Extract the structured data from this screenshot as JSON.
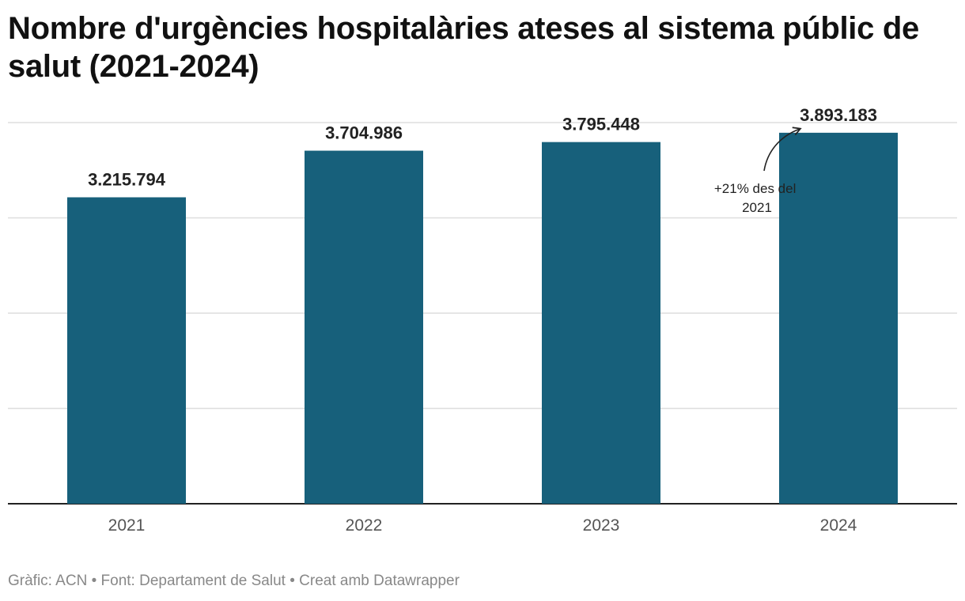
{
  "title": "Nombre d'urgències hospitalàries ateses al sistema públic de salut (2021-2024)",
  "footer": {
    "chart_by": "Gràfic: ACN",
    "source": "Font: Departament de Salut",
    "made_with": "Creat amb Datawrapper",
    "separator": "•"
  },
  "colors": {
    "bar": "#17607b",
    "grid": "#dedede",
    "baseline": "#222222"
  },
  "chart_data": {
    "type": "bar",
    "title": "Nombre d'urgències hospitalàries ateses al sistema públic de salut (2021-2024)",
    "categories": [
      "2021",
      "2022",
      "2023",
      "2024"
    ],
    "values": [
      3215794,
      3704986,
      3795448,
      3893183
    ],
    "value_labels": [
      "3.215.794",
      "3.704.986",
      "3.795.448",
      "3.893.183"
    ],
    "xlabel": "",
    "ylabel": "",
    "ylim": [
      0,
      4000000
    ],
    "yticks": [
      0,
      1000000,
      2000000,
      3000000,
      4000000
    ],
    "grid": true,
    "legend": "none",
    "annotation": {
      "lines": [
        "+21% des del",
        "2021"
      ],
      "target_category": "2024"
    }
  }
}
